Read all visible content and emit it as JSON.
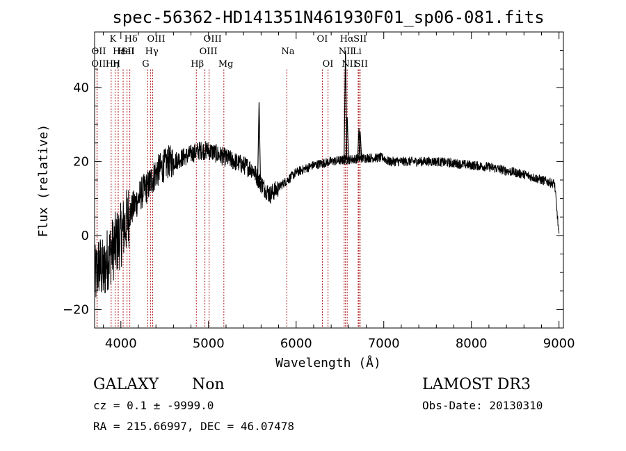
{
  "chart_data": {
    "type": "line",
    "title": "spec-56362-HD141351N461930F01_sp06-081.fits",
    "xlabel": "Wavelength (Å)",
    "ylabel": "Flux (relative)",
    "xlim": [
      3700,
      9050
    ],
    "ylim": [
      -25,
      55
    ],
    "xticks": [
      4000,
      5000,
      6000,
      7000,
      8000,
      9000
    ],
    "yticks": [
      -20,
      0,
      20,
      40
    ],
    "grid": false,
    "series": [
      {
        "name": "spectrum",
        "x": [
          3700,
          3750,
          3800,
          3850,
          3900,
          3950,
          4000,
          4050,
          4100,
          4150,
          4200,
          4250,
          4300,
          4350,
          4400,
          4450,
          4500,
          4550,
          4600,
          4700,
          4800,
          4900,
          5000,
          5100,
          5200,
          5300,
          5400,
          5500,
          5600,
          5700,
          5800,
          5900,
          6000,
          6200,
          6400,
          6600,
          6800,
          6900,
          7000,
          7050,
          7100,
          7200,
          7300,
          7400,
          7600,
          7800,
          8000,
          8200,
          8400,
          8600,
          8800,
          8950,
          9000
        ],
        "y": [
          -12,
          -8,
          -10,
          -6,
          -4,
          -2,
          0,
          3,
          6,
          8,
          10,
          12,
          13,
          15,
          17,
          18,
          19,
          20,
          20,
          21,
          22,
          23,
          23,
          22,
          21,
          20,
          19,
          18,
          14,
          11,
          13,
          15,
          17,
          19,
          20,
          20.5,
          21,
          21,
          21,
          20,
          20,
          20,
          20,
          20,
          20,
          19.5,
          19,
          18.5,
          17.5,
          16.5,
          15,
          14,
          0
        ]
      }
    ],
    "emission_peaks": [
      {
        "x": 5577,
        "y": 36
      },
      {
        "x": 6548,
        "y": 22
      },
      {
        "x": 6563,
        "y": 50
      },
      {
        "x": 6583,
        "y": 32
      },
      {
        "x": 6717,
        "y": 29
      },
      {
        "x": 6731,
        "y": 28
      }
    ],
    "spectral_lines": [
      {
        "x": 3727,
        "label": "OII",
        "row": 2,
        "anchor": "start"
      },
      {
        "x": 3729,
        "label": "OII",
        "row": 1,
        "anchor": "start"
      },
      {
        "x": 3889,
        "label": "Hη",
        "row": 2,
        "anchor": "start"
      },
      {
        "x": 3934,
        "label": "K",
        "row": 0,
        "anchor": "start"
      },
      {
        "x": 3969,
        "label": "H",
        "row": 2,
        "anchor": "start"
      },
      {
        "x": 3970,
        "label": "Hε",
        "row": 1,
        "anchor": "start"
      },
      {
        "x": 4026,
        "label": "HeI",
        "row": 1,
        "anchor": "start"
      },
      {
        "x": 4102,
        "label": "Hδ",
        "row": 0,
        "anchor": "start"
      },
      {
        "x": 4070,
        "label": "SII",
        "row": 1,
        "anchor": "start"
      },
      {
        "x": 4305,
        "label": "G",
        "row": 2,
        "anchor": "start"
      },
      {
        "x": 4340,
        "label": "Hγ",
        "row": 1,
        "anchor": "start"
      },
      {
        "x": 4363,
        "label": "OIII",
        "row": 0,
        "anchor": "start"
      },
      {
        "x": 4861,
        "label": "Hβ",
        "row": 2,
        "anchor": "start"
      },
      {
        "x": 4959,
        "label": "OIII",
        "row": 1,
        "anchor": "start"
      },
      {
        "x": 5007,
        "label": "OIII",
        "row": 0,
        "anchor": "start"
      },
      {
        "x": 5175,
        "label": "Mg",
        "row": 2,
        "anchor": "start"
      },
      {
        "x": 5894,
        "label": "Na",
        "row": 1,
        "anchor": "start"
      },
      {
        "x": 6300,
        "label": "OI",
        "row": 0,
        "anchor": "start"
      },
      {
        "x": 6364,
        "label": "OI",
        "row": 2,
        "anchor": "start"
      },
      {
        "x": 6548,
        "label": "NII",
        "row": 1,
        "anchor": "start"
      },
      {
        "x": 6563,
        "label": "Hα",
        "row": 0,
        "anchor": "start"
      },
      {
        "x": 6583,
        "label": "NII",
        "row": 2,
        "anchor": "start"
      },
      {
        "x": 6708,
        "label": "Li",
        "row": 1,
        "anchor": "start"
      },
      {
        "x": 6717,
        "label": "SII",
        "row": 0,
        "anchor": "start"
      },
      {
        "x": 6731,
        "label": "SII",
        "row": 2,
        "anchor": "start"
      }
    ]
  },
  "info": {
    "class_label": "GALAXY",
    "subclass_label": "Non",
    "survey": "LAMOST DR3",
    "cz_line": "cz = 0.1 ± -9999.0",
    "obs_date": "Obs-Date: 20130310",
    "radec_line": "RA = 215.66997, DEC =  46.07478"
  },
  "colors": {
    "spectrum": "#000000",
    "line_marker": "#b22222",
    "axes": "#000000",
    "background": "#ffffff"
  }
}
